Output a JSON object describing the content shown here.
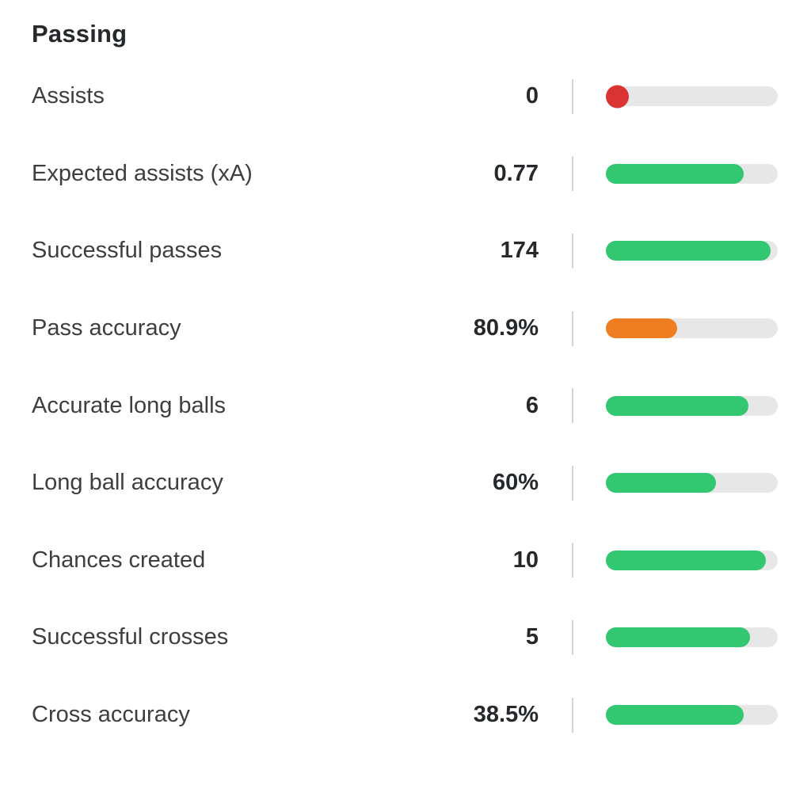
{
  "section": {
    "title": "Passing"
  },
  "colors": {
    "green": "#32c771",
    "orange": "#ef7e23",
    "red": "#d93333",
    "track": "#e8e7e7",
    "divider": "#d4d4d4"
  },
  "chart_data": {
    "type": "bar",
    "orientation": "horizontal",
    "title": "Passing",
    "categories": [
      "Assists",
      "Expected assists (xA)",
      "Successful passes",
      "Pass accuracy",
      "Accurate long balls",
      "Long ball accuracy",
      "Chances created",
      "Successful crosses",
      "Cross accuracy"
    ],
    "value_labels": [
      "0",
      "0.77",
      "174",
      "80.9%",
      "6",
      "60%",
      "10",
      "5",
      "38.5%"
    ],
    "fill_percent_of_track": [
      0,
      80,
      96,
      41.5,
      83,
      64,
      93,
      84,
      80
    ],
    "rows": [
      {
        "label": "Assists",
        "value": "0",
        "fill_pct": 0,
        "color": "red",
        "style": "dot"
      },
      {
        "label": "Expected assists (xA)",
        "value": "0.77",
        "fill_pct": 80,
        "color": "green",
        "style": "bar"
      },
      {
        "label": "Successful passes",
        "value": "174",
        "fill_pct": 96,
        "color": "green",
        "style": "bar"
      },
      {
        "label": "Pass accuracy",
        "value": "80.9%",
        "fill_pct": 41.5,
        "color": "orange",
        "style": "bar"
      },
      {
        "label": "Accurate long balls",
        "value": "6",
        "fill_pct": 83,
        "color": "green",
        "style": "bar"
      },
      {
        "label": "Long ball accuracy",
        "value": "60%",
        "fill_pct": 64,
        "color": "green",
        "style": "bar"
      },
      {
        "label": "Chances created",
        "value": "10",
        "fill_pct": 93,
        "color": "green",
        "style": "bar"
      },
      {
        "label": "Successful crosses",
        "value": "5",
        "fill_pct": 84,
        "color": "green",
        "style": "bar"
      },
      {
        "label": "Cross accuracy",
        "value": "38.5%",
        "fill_pct": 80,
        "color": "green",
        "style": "bar"
      }
    ]
  }
}
